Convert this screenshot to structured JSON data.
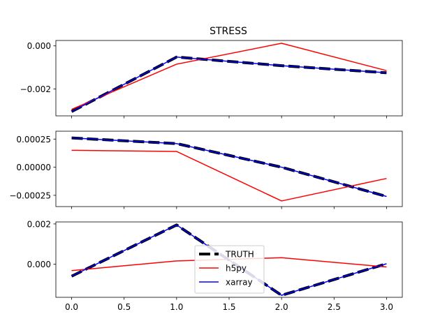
{
  "chart_data": {
    "type": "line",
    "title": "STRESS",
    "x": [
      0,
      1,
      2,
      3
    ],
    "xticks": [
      "0.0",
      "0.5",
      "1.0",
      "1.5",
      "2.0",
      "2.5",
      "3.0"
    ],
    "xlim": [
      -0.15,
      3.15
    ],
    "legend": {
      "placement": "lower-center",
      "entries": [
        "TRUTH",
        "h5py",
        "xarray"
      ]
    },
    "styles": {
      "TRUTH": {
        "color": "#000000",
        "dash": "dashed"
      },
      "h5py": {
        "color": "#ff0000",
        "dash": "solid"
      },
      "xarray": {
        "color": "#0000ff",
        "dash": "solid"
      }
    },
    "panels": [
      {
        "ylim": [
          -0.00325,
          0.00025
        ],
        "yticks": [
          0.0,
          -0.002
        ],
        "ytick_labels": [
          "0.000",
          "−0.002"
        ],
        "series": [
          {
            "name": "TRUTH",
            "values": [
              -0.00305,
              -0.00052,
              -0.00092,
              -0.00125
            ]
          },
          {
            "name": "h5py",
            "values": [
              -0.00295,
              -0.00085,
              0.00012,
              -0.00115
            ]
          },
          {
            "name": "xarray",
            "values": [
              -0.00305,
              -0.00052,
              -0.00092,
              -0.00125
            ]
          }
        ]
      },
      {
        "ylim": [
          -0.00035,
          0.00032
        ],
        "yticks": [
          0.00025,
          0.0,
          -0.00025
        ],
        "ytick_labels": [
          "0.00025",
          "0.00000",
          "−0.00025"
        ],
        "series": [
          {
            "name": "TRUTH",
            "values": [
              0.00026,
              0.00021,
              0.0,
              -0.00026
            ]
          },
          {
            "name": "h5py",
            "values": [
              0.00015,
              0.00014,
              -0.0003,
              -0.0001
            ]
          },
          {
            "name": "xarray",
            "values": [
              0.00026,
              0.00021,
              0.0,
              -0.00026
            ]
          }
        ]
      },
      {
        "ylim": [
          -0.00165,
          0.0021
        ],
        "yticks": [
          0.002,
          0.0
        ],
        "ytick_labels": [
          "0.002",
          "0.000"
        ],
        "series": [
          {
            "name": "TRUTH",
            "values": [
              -0.0006,
              0.00195,
              -0.00155,
              2e-05
            ]
          },
          {
            "name": "h5py",
            "values": [
              -0.00032,
              0.00016,
              0.00032,
              -0.00014
            ]
          },
          {
            "name": "xarray",
            "values": [
              -0.0006,
              0.00195,
              -0.00155,
              2e-05
            ]
          }
        ]
      }
    ]
  }
}
